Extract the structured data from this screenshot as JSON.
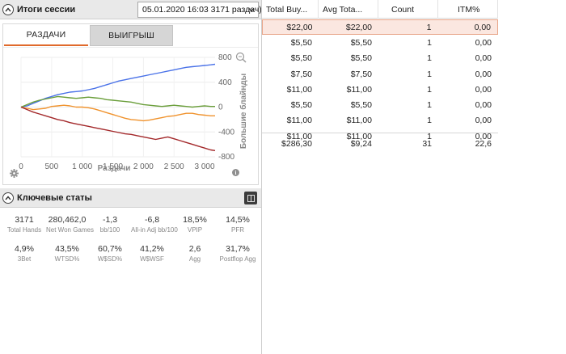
{
  "session": {
    "title": "Итоги сессии",
    "selector_value": "05.01.2020 16:03 3171 раздач)"
  },
  "graph": {
    "tabs": [
      {
        "label": "РАЗДАЧИ",
        "active": true
      },
      {
        "label": "ВЫИГРЫШ",
        "active": false
      }
    ],
    "icons": [
      "zoom-icon",
      "gear-icon",
      "info-icon"
    ]
  },
  "chart_data": {
    "type": "line",
    "xlabel": "Раздачи",
    "ylabel": "Большие блайнды",
    "xlim": [
      0,
      3171
    ],
    "ylim": [
      -800,
      800
    ],
    "x_ticks": [
      "0",
      "500",
      "1 000",
      "1 500",
      "2 000",
      "2 500",
      "3 000"
    ],
    "x_tick_values": [
      0,
      500,
      1000,
      1500,
      2000,
      2500,
      3000
    ],
    "y_ticks": [
      "800",
      "400",
      "0",
      "-400",
      "-800"
    ],
    "y_tick_values": [
      800,
      400,
      0,
      -400,
      -800
    ],
    "series": [
      {
        "color": "#4a72e8",
        "x": [
          0,
          100,
          200,
          300,
          400,
          500,
          600,
          700,
          800,
          900,
          1000,
          1100,
          1200,
          1300,
          1400,
          1500,
          1600,
          1700,
          1800,
          1900,
          2000,
          2100,
          2200,
          2300,
          2400,
          2500,
          2600,
          2700,
          2800,
          2900,
          3000,
          3100,
          3171
        ],
        "y": [
          0,
          20,
          60,
          100,
          140,
          170,
          200,
          220,
          240,
          250,
          260,
          280,
          300,
          330,
          360,
          390,
          420,
          440,
          460,
          480,
          500,
          520,
          540,
          560,
          580,
          600,
          620,
          640,
          650,
          660,
          670,
          680,
          690
        ]
      },
      {
        "color": "#6a9e3a",
        "x": [
          0,
          100,
          200,
          300,
          400,
          500,
          600,
          700,
          800,
          900,
          1000,
          1100,
          1200,
          1300,
          1400,
          1500,
          1600,
          1700,
          1800,
          1900,
          2000,
          2100,
          2200,
          2300,
          2400,
          2500,
          2600,
          2700,
          2800,
          2900,
          3000,
          3100,
          3171
        ],
        "y": [
          0,
          40,
          80,
          110,
          130,
          150,
          170,
          160,
          150,
          140,
          150,
          160,
          150,
          140,
          120,
          110,
          100,
          90,
          80,
          60,
          40,
          30,
          20,
          10,
          20,
          30,
          20,
          10,
          0,
          10,
          20,
          10,
          10
        ]
      },
      {
        "color": "#f0922c",
        "x": [
          0,
          100,
          200,
          300,
          400,
          500,
          600,
          700,
          800,
          900,
          1000,
          1100,
          1200,
          1300,
          1400,
          1500,
          1600,
          1700,
          1800,
          1900,
          2000,
          2100,
          2200,
          2300,
          2400,
          2500,
          2600,
          2700,
          2800,
          2900,
          3000,
          3100,
          3171
        ],
        "y": [
          0,
          -20,
          -40,
          -30,
          -20,
          10,
          20,
          30,
          20,
          0,
          0,
          -10,
          -30,
          -60,
          -90,
          -120,
          -150,
          -180,
          -200,
          -210,
          -220,
          -210,
          -190,
          -170,
          -150,
          -140,
          -120,
          -100,
          -100,
          -120,
          -130,
          -140,
          -140
        ]
      },
      {
        "color": "#a3282a",
        "x": [
          0,
          100,
          200,
          300,
          400,
          500,
          600,
          700,
          800,
          900,
          1000,
          1100,
          1200,
          1300,
          1400,
          1500,
          1600,
          1700,
          1800,
          1900,
          2000,
          2100,
          2200,
          2300,
          2400,
          2500,
          2600,
          2700,
          2800,
          2900,
          3000,
          3100,
          3171
        ],
        "y": [
          0,
          -40,
          -80,
          -110,
          -140,
          -170,
          -200,
          -220,
          -250,
          -270,
          -290,
          -310,
          -330,
          -350,
          -370,
          -390,
          -410,
          -430,
          -440,
          -460,
          -480,
          -500,
          -520,
          -500,
          -480,
          -510,
          -540,
          -570,
          -600,
          -630,
          -660,
          -690,
          -700
        ]
      }
    ]
  },
  "key_stats": {
    "title": "Ключевые статы",
    "row1": [
      {
        "value": "3171",
        "label": "Total Hands"
      },
      {
        "value": "280,462,0",
        "label": "Net Won Games"
      },
      {
        "value": "-1,3",
        "label": "bb/100"
      },
      {
        "value": "-6,8",
        "label": "All-in Adj bb/100"
      },
      {
        "value": "18,5%",
        "label": "VPIP"
      },
      {
        "value": "14,5%",
        "label": "PFR"
      }
    ],
    "row2": [
      {
        "value": "4,9%",
        "label": "3Bet"
      },
      {
        "value": "43,5%",
        "label": "WTSD%"
      },
      {
        "value": "60,7%",
        "label": "W$SD%"
      },
      {
        "value": "41,2%",
        "label": "W$WSF"
      },
      {
        "value": "2,6",
        "label": "Agg"
      },
      {
        "value": "31,7%",
        "label": "Postflop Agg"
      }
    ]
  },
  "table": {
    "headers": [
      "Total Buy...",
      "Avg Tota...",
      "Count",
      "ITM%"
    ],
    "rows": [
      [
        "$22,00",
        "$22,00",
        "1",
        "0,00"
      ],
      [
        "$5,50",
        "$5,50",
        "1",
        "0,00"
      ],
      [
        "$5,50",
        "$5,50",
        "1",
        "0,00"
      ],
      [
        "$7,50",
        "$7,50",
        "1",
        "0,00"
      ],
      [
        "$11,00",
        "$11,00",
        "1",
        "0,00"
      ],
      [
        "$5,50",
        "$5,50",
        "1",
        "0,00"
      ],
      [
        "$11,00",
        "$11,00",
        "1",
        "0,00"
      ],
      [
        "$11,00",
        "$11,00",
        "1",
        "0,00"
      ]
    ],
    "footer": [
      "$286,30",
      "$9,24",
      "31",
      "22,6"
    ]
  }
}
